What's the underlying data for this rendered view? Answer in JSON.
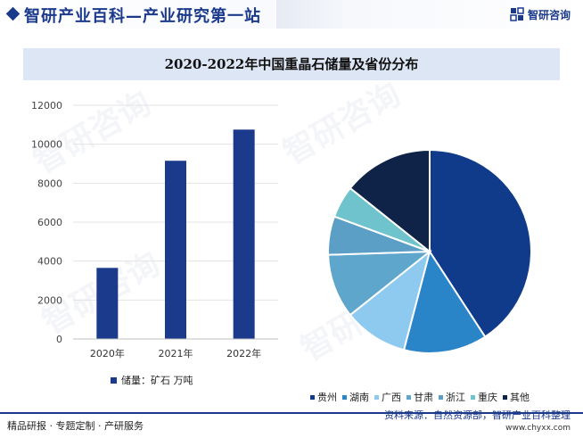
{
  "header": {
    "title": "智研产业百科—产业研究第一站",
    "brand": "智研咨询"
  },
  "colors": {
    "brand": "#1b3a8c",
    "bar": "#1b3a8c"
  },
  "chart_data": [
    {
      "type": "bar",
      "title": "2020-2022年中国重晶石储量及省份分布",
      "categories": [
        "2020年",
        "2021年",
        "2022年"
      ],
      "series": [
        {
          "name": "储量：矿石  万吨",
          "values": [
            3650,
            9150,
            10750
          ]
        }
      ],
      "ylim": [
        0,
        12000
      ],
      "yticks": [
        0,
        2000,
        4000,
        6000,
        8000,
        10000,
        12000
      ],
      "xlabel": "",
      "ylabel": "",
      "grid": true,
      "legend": "bottom"
    },
    {
      "type": "pie",
      "labels": [
        "贵州",
        "湖南",
        "广西",
        "甘肃",
        "浙江",
        "重庆",
        "其他"
      ],
      "values": [
        40,
        13,
        10,
        10,
        6,
        5,
        14
      ],
      "colors": [
        "#103a8a",
        "#2a84c8",
        "#8ec9ef",
        "#5ea6cc",
        "#5c9fc6",
        "#6fc3cc",
        "#0f2349"
      ],
      "legend": "bottom"
    }
  ],
  "footer": {
    "left": "精品研报 · 专题定制 · 产研服务",
    "source": "资料来源：自然资源部，智研产业百科整理",
    "url": "www.chyxx.com"
  }
}
